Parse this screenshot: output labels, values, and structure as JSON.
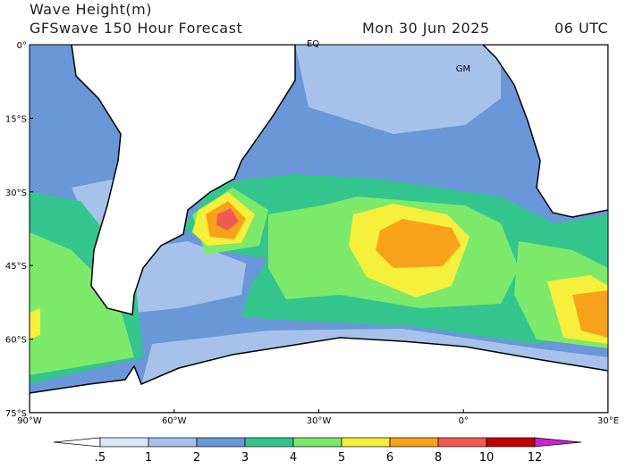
{
  "header": {
    "title": "Wave Height(m)",
    "subtitle": "GFSwave 150 Hour Forecast",
    "date": "Mon 30 Jun 2025",
    "time": "06 UTC"
  },
  "lat_labels": [
    "0°",
    "15°S",
    "30°S",
    "45°S",
    "60°S",
    "75°S"
  ],
  "lon_labels": [
    "90°W",
    "60°W",
    "30°W",
    "0°",
    "30°E"
  ],
  "map_labels": {
    "equator": "EQ",
    "meridian": "GM"
  },
  "colorbar": {
    "labels": [
      ".5",
      "1",
      "2",
      "3",
      "4",
      "5",
      "6",
      "8",
      "10",
      "12"
    ],
    "colors": [
      "#ffffff",
      "#dce8f7",
      "#a6c2ea",
      "#6a97d8",
      "#34c58e",
      "#7de96b",
      "#f6ef3b",
      "#f8a21a",
      "#f05a55",
      "#c20000",
      "#cc22cc"
    ]
  }
}
